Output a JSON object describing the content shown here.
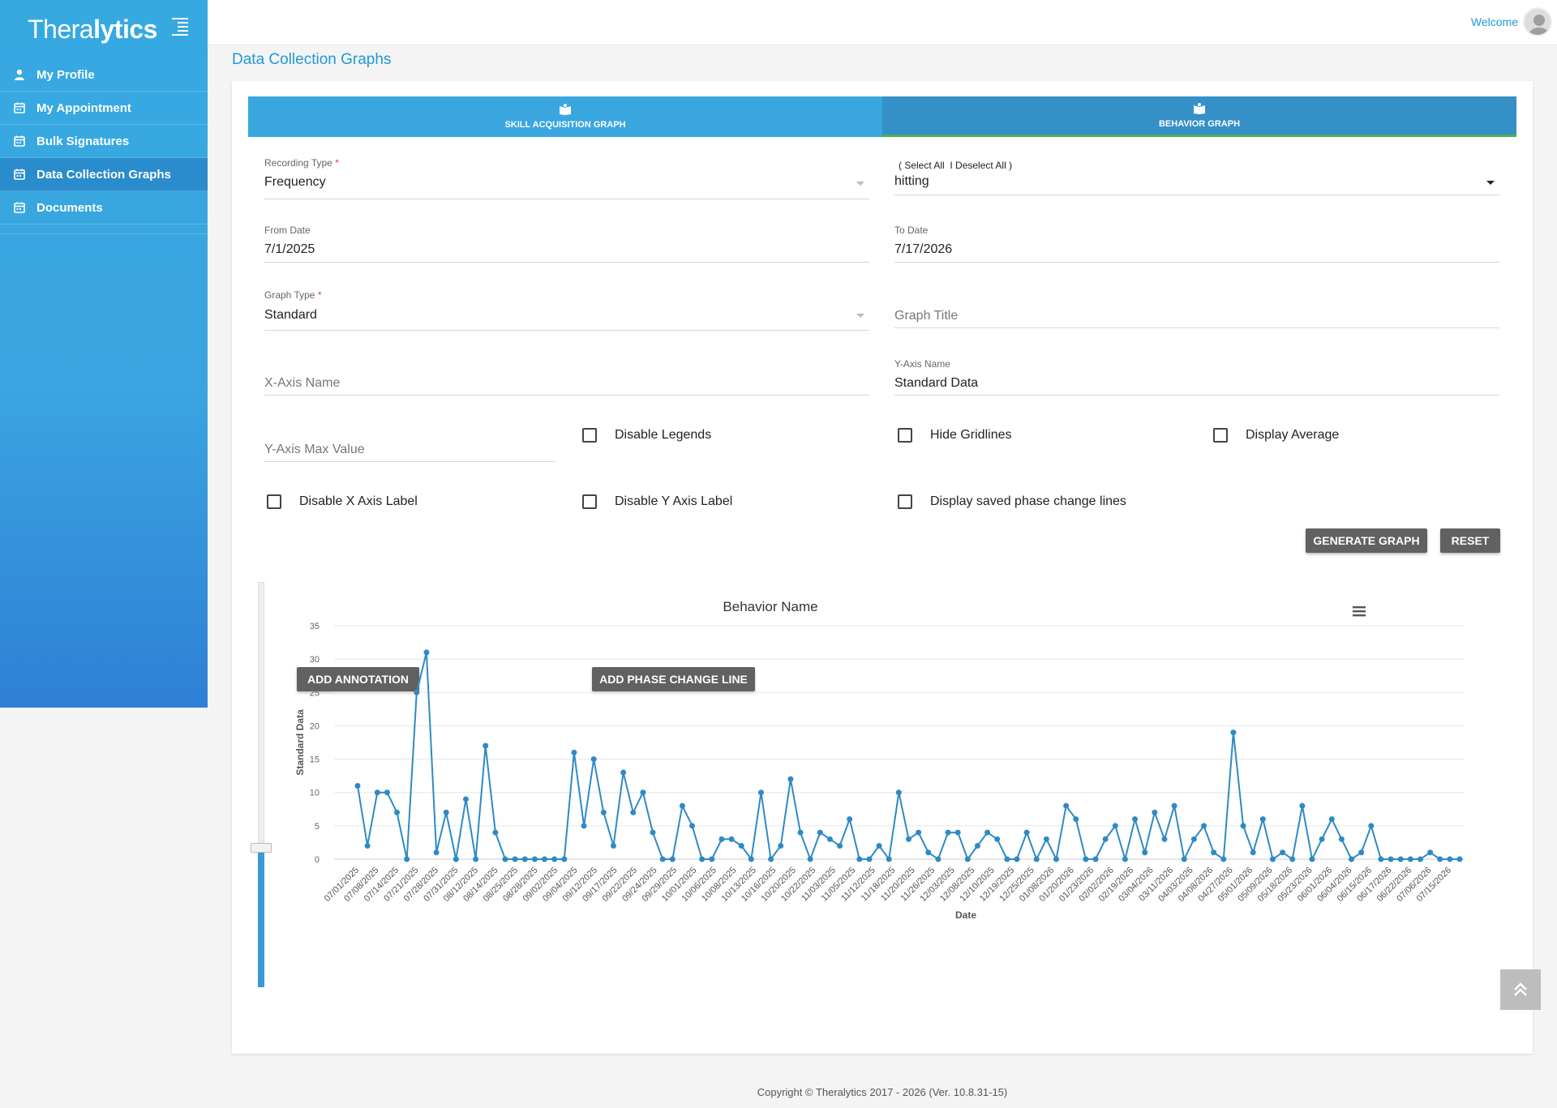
{
  "app": {
    "logo_text_1": "Thera",
    "logo_text_2": "lytics",
    "welcome": "Welcome"
  },
  "sidebar": {
    "items": [
      {
        "label": "My Profile",
        "icon": "user-icon"
      },
      {
        "label": "My Appointment",
        "icon": "calendar-icon"
      },
      {
        "label": "Bulk Signatures",
        "icon": "calendar-icon"
      },
      {
        "label": "Data Collection Graphs",
        "icon": "calendar-icon",
        "active": true
      },
      {
        "label": "Documents",
        "icon": "calendar-icon"
      }
    ]
  },
  "page": {
    "title": "Data Collection Graphs"
  },
  "tabs": [
    {
      "label": "SKILL ACQUISITION GRAPH",
      "icon": "book-icon"
    },
    {
      "label": "BEHAVIOR GRAPH",
      "icon": "book-icon",
      "active": true
    }
  ],
  "form": {
    "recording_type": {
      "label": "Recording Type",
      "required": "*",
      "value": "Frequency"
    },
    "behavior_select": {
      "select_all": "( Select All",
      "deselect_all": "Deselect All )",
      "value": "hitting"
    },
    "from_date": {
      "label": "From Date",
      "value": "7/1/2025"
    },
    "to_date": {
      "label": "To Date",
      "value": "7/17/2026"
    },
    "graph_type": {
      "label": "Graph Type",
      "required": "*",
      "value": "Standard"
    },
    "graph_title": {
      "placeholder": "Graph Title"
    },
    "x_axis_name": {
      "placeholder": "X-Axis Name"
    },
    "y_axis_name": {
      "label": "Y-Axis Name",
      "value": "Standard Data"
    },
    "y_axis_max": {
      "placeholder": "Y-Axis Max Value"
    },
    "checkboxes": {
      "disable_legends": "Disable Legends",
      "hide_gridlines": "Hide Gridlines",
      "display_average": "Display Average",
      "disable_x_axis_label": "Disable X Axis Label",
      "disable_y_axis_label": "Disable Y Axis Label",
      "display_phase_lines": "Display saved phase change lines"
    },
    "generate_button": "GENERATE GRAPH",
    "reset_button": "RESET"
  },
  "chart_controls": {
    "add_annotation": "ADD ANNOTATION",
    "add_phase_change_line": "ADD PHASE CHANGE LINE"
  },
  "chart_data": {
    "type": "line",
    "title": "Behavior Name",
    "xlabel": "Date",
    "ylabel": "Standard Data",
    "ylim": [
      0,
      35
    ],
    "yticks": [
      0,
      5,
      10,
      15,
      20,
      25,
      30,
      35
    ],
    "grid": true,
    "color": "#2f8ac4",
    "x_tick_labels": [
      "07/01/2025",
      "07/08/2025",
      "07/14/2025",
      "07/21/2025",
      "07/28/2025",
      "07/31/2025",
      "08/12/2025",
      "08/14/2025",
      "08/25/2025",
      "08/28/2025",
      "09/02/2025",
      "09/04/2025",
      "09/12/2025",
      "09/17/2025",
      "09/22/2025",
      "09/24/2025",
      "09/29/2025",
      "10/01/2025",
      "10/06/2025",
      "10/08/2025",
      "10/13/2025",
      "10/16/2025",
      "10/20/2025",
      "10/22/2025",
      "11/03/2025",
      "11/05/2025",
      "11/12/2025",
      "11/18/2025",
      "11/20/2025",
      "11/26/2025",
      "12/03/2025",
      "12/08/2025",
      "12/10/2025",
      "12/19/2025",
      "12/25/2025",
      "01/08/2026",
      "01/20/2026",
      "01/23/2026",
      "02/02/2026",
      "02/19/2026",
      "03/04/2026",
      "03/11/2026",
      "04/03/2026",
      "04/08/2026",
      "04/27/2026",
      "05/01/2026",
      "05/09/2026",
      "05/18/2026",
      "05/23/2026",
      "06/01/2026",
      "06/04/2026",
      "06/15/2026",
      "06/17/2026",
      "06/22/2026",
      "07/06/2026",
      "07/15/2026"
    ],
    "values": [
      11,
      2,
      10,
      10,
      7,
      0,
      25,
      31,
      1,
      7,
      0,
      9,
      0,
      17,
      4,
      0,
      0,
      0,
      0,
      0,
      0,
      0,
      16,
      5,
      15,
      7,
      2,
      13,
      7,
      10,
      4,
      0,
      0,
      8,
      5,
      0,
      0,
      3,
      3,
      2,
      0,
      10,
      0,
      2,
      12,
      4,
      0,
      4,
      3,
      2,
      6,
      0,
      0,
      2,
      0,
      10,
      3,
      4,
      1,
      0,
      4,
      4,
      0,
      2,
      4,
      3,
      0,
      0,
      4,
      0,
      3,
      0,
      8,
      6,
      0,
      0,
      3,
      5,
      0,
      6,
      1,
      7,
      3,
      8,
      0,
      3,
      5,
      1,
      0,
      19,
      5,
      1,
      6,
      0,
      1,
      0,
      8,
      0,
      3,
      6,
      3,
      0,
      1,
      5,
      0,
      0,
      0,
      0,
      0,
      1,
      0,
      0,
      0
    ]
  },
  "footer": "Copyright © Theralytics 2017 - 2026 (Ver. 10.8.31-15)"
}
